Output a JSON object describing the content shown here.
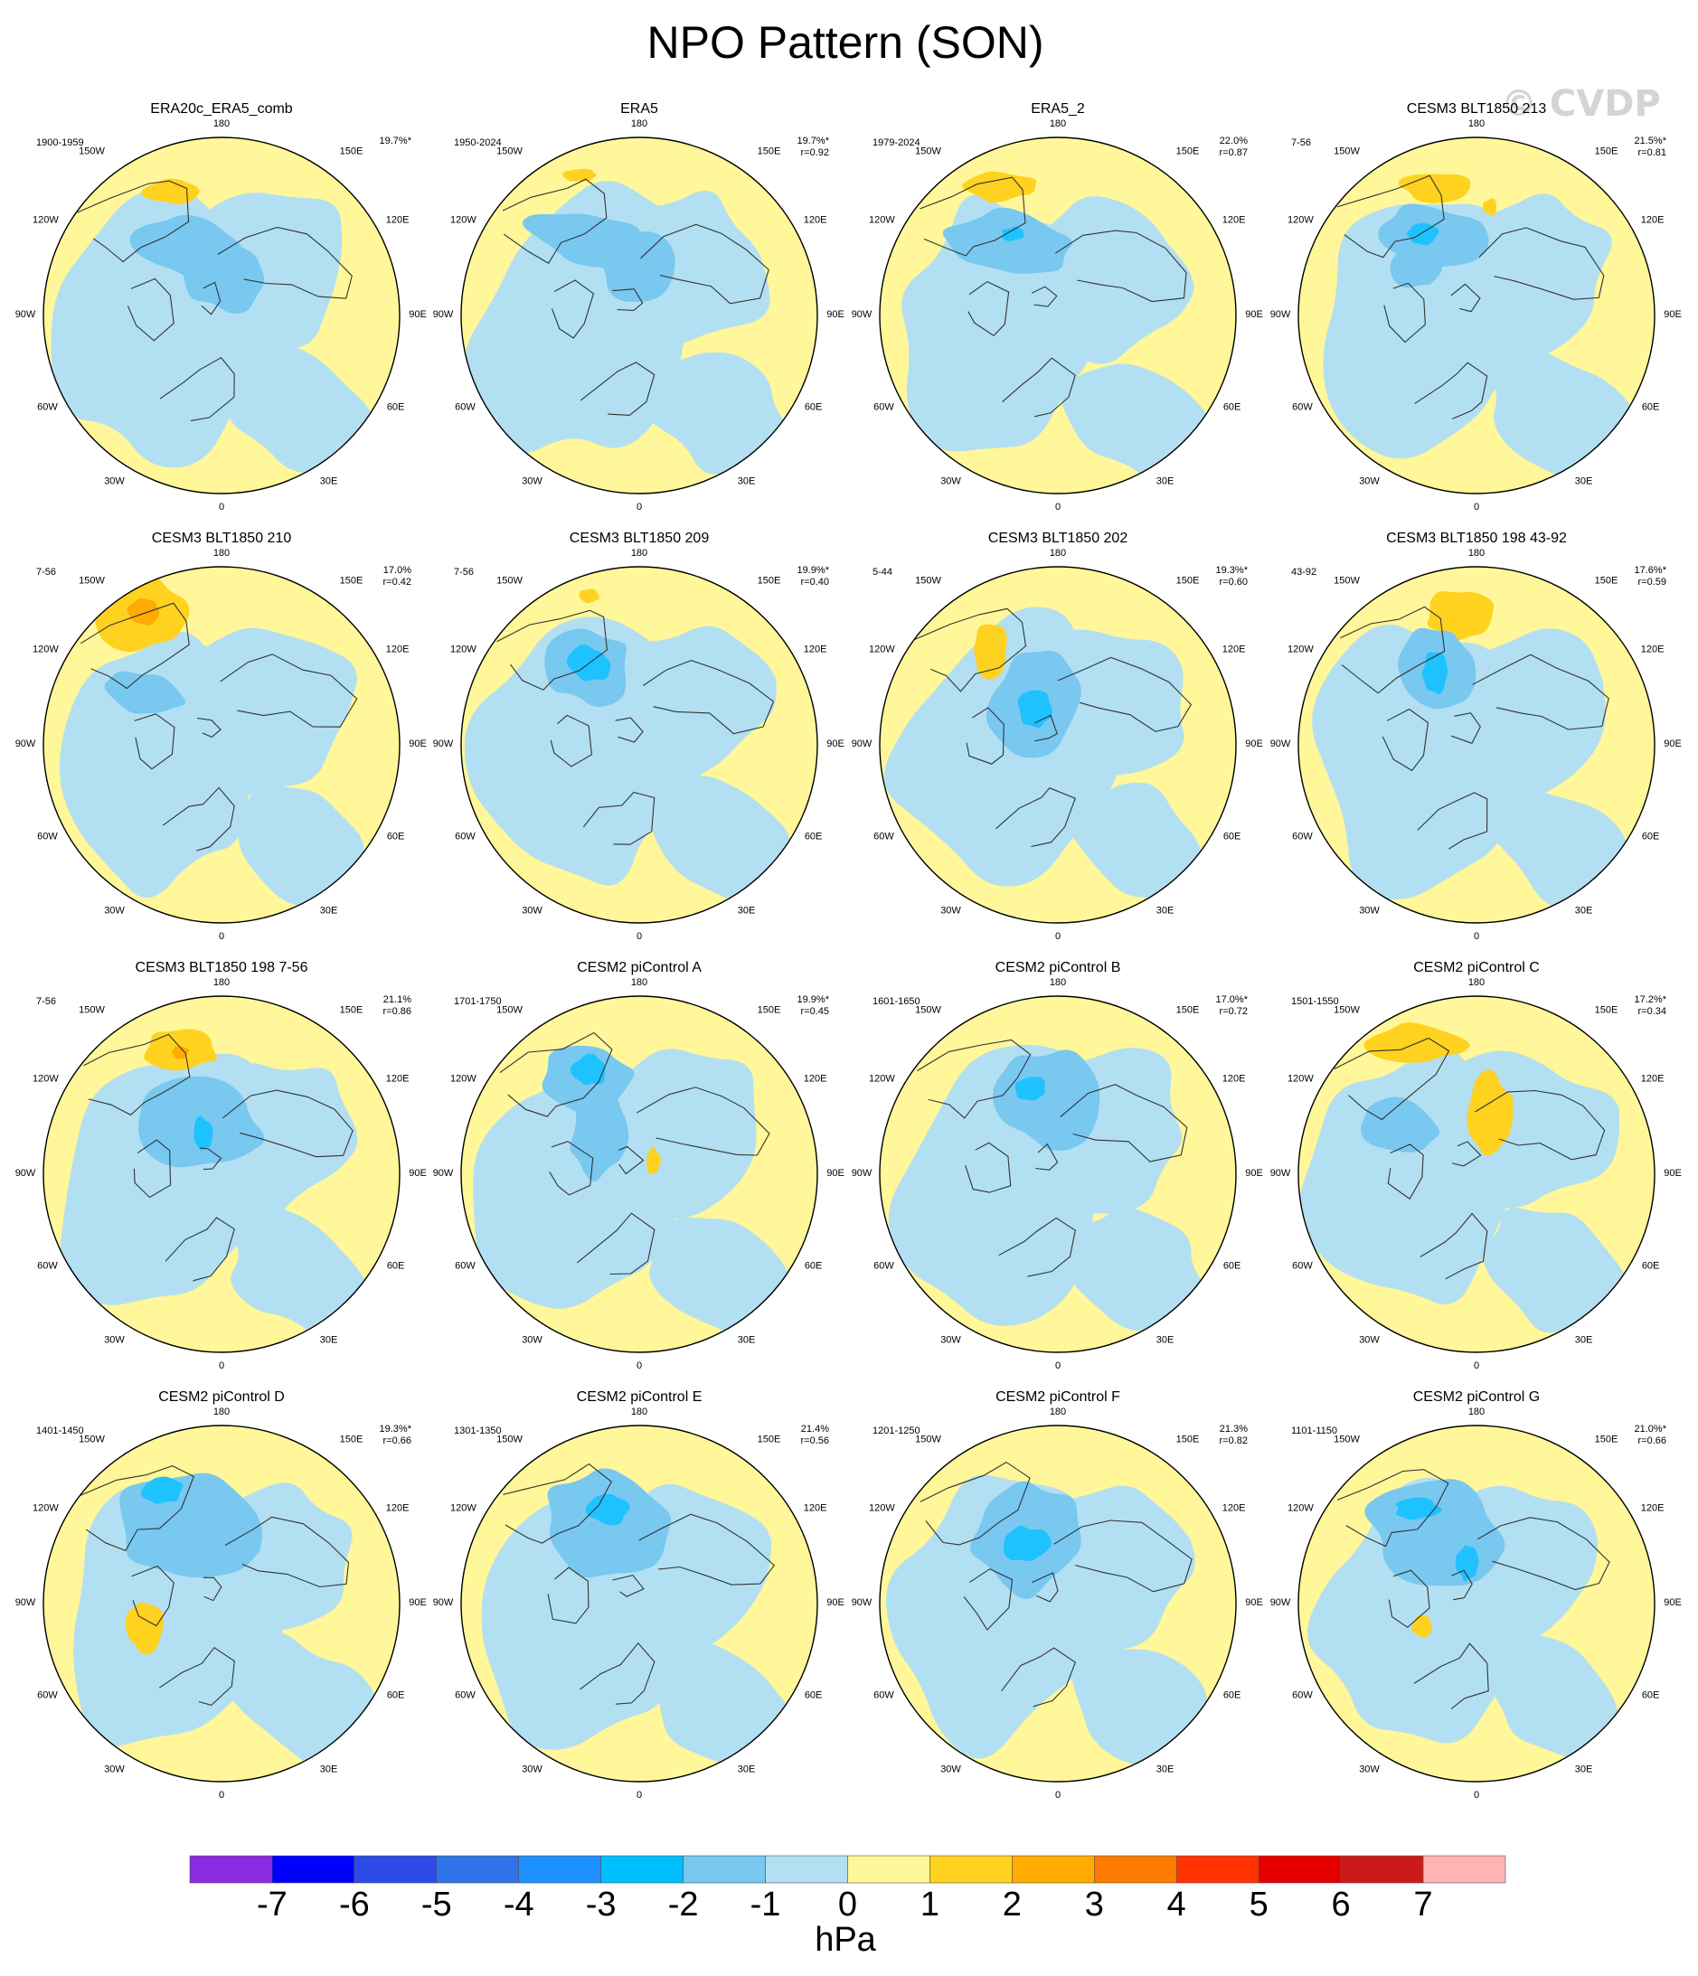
{
  "figure": {
    "title": "NPO Pattern (SON)",
    "watermark": "© CVDP",
    "unit_label": "hPa"
  },
  "longitude_labels": [
    "180",
    "150E",
    "120E",
    "90E",
    "60E",
    "30E",
    "0",
    "30W",
    "60W",
    "90W",
    "120W",
    "150W"
  ],
  "colors": {
    "ocean_neg1": "#b3dff2",
    "land_pos1": "#fff799",
    "pos2": "#ffd21f",
    "pos3": "#ffab00",
    "neg2": "#78c8f0",
    "neg3": "#1ec2ff",
    "neg4": "#1e90ff",
    "coast": "#333333"
  },
  "colorbar": {
    "ticks": [
      "-7",
      "-6",
      "-5",
      "-4",
      "-3",
      "-2",
      "-1",
      "0",
      "1",
      "2",
      "3",
      "4",
      "5",
      "6",
      "7"
    ],
    "colors": [
      "#8a2be2",
      "#0000ff",
      "#2b4ae8",
      "#2f74e6",
      "#1e90ff",
      "#00bfff",
      "#78c8f0",
      "#b3dff2",
      "#fff799",
      "#ffd21f",
      "#ffab00",
      "#ff7a00",
      "#ff3300",
      "#e60000",
      "#cc1a1a",
      "#ffb3b3"
    ]
  },
  "panels": [
    {
      "title": "ERA20c_ERA5_comb",
      "years": "1900-1959",
      "pct": "19.7%*",
      "r": ""
    },
    {
      "title": "ERA5",
      "years": "1950-2024",
      "pct": "19.7%*",
      "r": "r=0.92"
    },
    {
      "title": "ERA5_2",
      "years": "1979-2024",
      "pct": "22.0%",
      "r": "r=0.87"
    },
    {
      "title": "CESM3 BLT1850 213",
      "years": "7-56",
      "pct": "21.5%*",
      "r": "r=0.81"
    },
    {
      "title": "CESM3 BLT1850 210",
      "years": "7-56",
      "pct": "17.0%",
      "r": "r=0.42"
    },
    {
      "title": "CESM3 BLT1850 209",
      "years": "7-56",
      "pct": "19.9%*",
      "r": "r=0.40"
    },
    {
      "title": "CESM3 BLT1850 202",
      "years": "5-44",
      "pct": "19.3%*",
      "r": "r=0.60"
    },
    {
      "title": "CESM3 BLT1850 198 43-92",
      "years": "43-92",
      "pct": "17.6%*",
      "r": "r=0.59"
    },
    {
      "title": "CESM3 BLT1850 198 7-56",
      "years": "7-56",
      "pct": "21.1%",
      "r": "r=0.86"
    },
    {
      "title": "CESM2 piControl A",
      "years": "1701-1750",
      "pct": "19.9%*",
      "r": "r=0.45"
    },
    {
      "title": "CESM2 piControl B",
      "years": "1601-1650",
      "pct": "17.0%*",
      "r": "r=0.72"
    },
    {
      "title": "CESM2 piControl C",
      "years": "1501-1550",
      "pct": "17.2%*",
      "r": "r=0.34"
    },
    {
      "title": "CESM2 piControl D",
      "years": "1401-1450",
      "pct": "19.3%*",
      "r": "r=0.66"
    },
    {
      "title": "CESM2 piControl E",
      "years": "1301-1350",
      "pct": "21.4%",
      "r": "r=0.56"
    },
    {
      "title": "CESM2 piControl F",
      "years": "1201-1250",
      "pct": "21.3%",
      "r": "r=0.82"
    },
    {
      "title": "CESM2 piControl G",
      "years": "1101-1150",
      "pct": "21.0%*",
      "r": "r=0.66"
    }
  ]
}
